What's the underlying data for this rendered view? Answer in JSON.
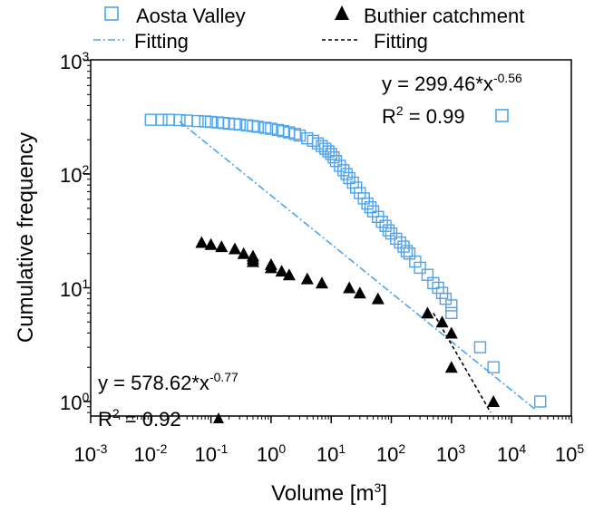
{
  "chart_data": {
    "type": "scatter",
    "x_scale": "log",
    "y_scale": "log",
    "xlim": [
      0.001,
      100000
    ],
    "ylim": [
      0.6,
      1000
    ],
    "xlabel": "Volume [m",
    "xlabel_sup": "3",
    "xlabel_suffix": "]",
    "ylabel": "Cumulative frequency",
    "x_ticks": [
      {
        "base": "10",
        "exp": "-3",
        "value": 0.001
      },
      {
        "base": "10",
        "exp": "-2",
        "value": 0.01
      },
      {
        "base": "10",
        "exp": "-1",
        "value": 0.1
      },
      {
        "base": "10",
        "exp": "0",
        "value": 1
      },
      {
        "base": "10",
        "exp": "1",
        "value": 10
      },
      {
        "base": "10",
        "exp": "2",
        "value": 100
      },
      {
        "base": "10",
        "exp": "3",
        "value": 1000
      },
      {
        "base": "10",
        "exp": "4",
        "value": 10000
      },
      {
        "base": "10",
        "exp": "5",
        "value": 100000
      }
    ],
    "y_ticks": [
      {
        "base": "10",
        "exp": "0",
        "value": 1
      },
      {
        "base": "10",
        "exp": "1",
        "value": 10
      },
      {
        "base": "10",
        "exp": "2",
        "value": 100
      },
      {
        "base": "10",
        "exp": "3",
        "value": 1000
      }
    ],
    "legend": [
      {
        "label": "Aosta Valley",
        "marker": "open-square",
        "color": "#4da3ee"
      },
      {
        "label": "Buthier catchment",
        "marker": "filled-triangle",
        "color": "#000000"
      },
      {
        "label": "Fitting",
        "marker": "dash-dot-line",
        "color": "#4da3ee"
      },
      {
        "label": "Fitting",
        "marker": "dashed-line",
        "color": "#000000"
      }
    ],
    "annotations": {
      "aosta_eq_prefix": "y = 299.46*x",
      "aosta_eq_exp": "-0.56",
      "aosta_r2_prefix": "R",
      "aosta_r2_sup": "2",
      "aosta_r2_value": " = 0.99",
      "buthier_eq_prefix": "y = 578.62*x",
      "buthier_eq_exp": "-0.77",
      "buthier_r2_prefix": "R",
      "buthier_r2_sup": "2",
      "buthier_r2_value": " = 0.92"
    },
    "series": [
      {
        "name": "Aosta Valley",
        "marker": "open-square",
        "color": "#4da3ee",
        "x": [
          0.01,
          0.015,
          0.02,
          0.03,
          0.04,
          0.06,
          0.08,
          0.1,
          0.13,
          0.16,
          0.2,
          0.25,
          0.3,
          0.4,
          0.5,
          0.6,
          0.8,
          1,
          1.3,
          1.6,
          2,
          2.5,
          3,
          4,
          5,
          6,
          7,
          8,
          9,
          10,
          11,
          12,
          14,
          16,
          18,
          20,
          23,
          26,
          30,
          35,
          40,
          45,
          50,
          60,
          70,
          80,
          90,
          100,
          120,
          140,
          160,
          180,
          200,
          250,
          300,
          400,
          500,
          600,
          700,
          800,
          1000,
          1000,
          3000,
          5000,
          30000
        ],
        "y": [
          300,
          300,
          300,
          298,
          295,
          292,
          290,
          287,
          284,
          281,
          278,
          275,
          272,
          268,
          264,
          260,
          255,
          250,
          244,
          238,
          232,
          225,
          218,
          206,
          196,
          186,
          176,
          167,
          158,
          150,
          140,
          130,
          118,
          108,
          100,
          92,
          84,
          76,
          68,
          61,
          55,
          51,
          47,
          42,
          38,
          35,
          32,
          30,
          27,
          25,
          23,
          21,
          20,
          17,
          15,
          13,
          11,
          10,
          9,
          8,
          7,
          6,
          3,
          2,
          1
        ]
      },
      {
        "name": "Buthier catchment",
        "marker": "filled-triangle",
        "color": "#000000",
        "x": [
          0.07,
          0.1,
          0.15,
          0.25,
          0.35,
          0.5,
          0.5,
          0.5,
          1,
          1,
          1.5,
          2,
          4,
          7,
          20,
          30,
          60,
          400,
          700,
          1000,
          1000,
          5000
        ],
        "y": [
          25,
          24,
          23,
          22,
          20,
          19,
          18,
          17,
          16,
          15,
          14,
          13,
          12,
          11,
          10,
          9,
          8,
          6,
          5,
          4,
          2,
          1
        ]
      }
    ],
    "fits": [
      {
        "name": "Fitting",
        "color": "#4da3ee",
        "style": "dash-dot",
        "x": [
          0.03,
          25000
        ],
        "y": [
          290,
          0.85
        ]
      },
      {
        "name": "Fitting",
        "color": "#000000",
        "style": "dashed",
        "x": [
          500,
          4500
        ],
        "y": [
          6,
          0.8
        ]
      }
    ],
    "title": ""
  }
}
